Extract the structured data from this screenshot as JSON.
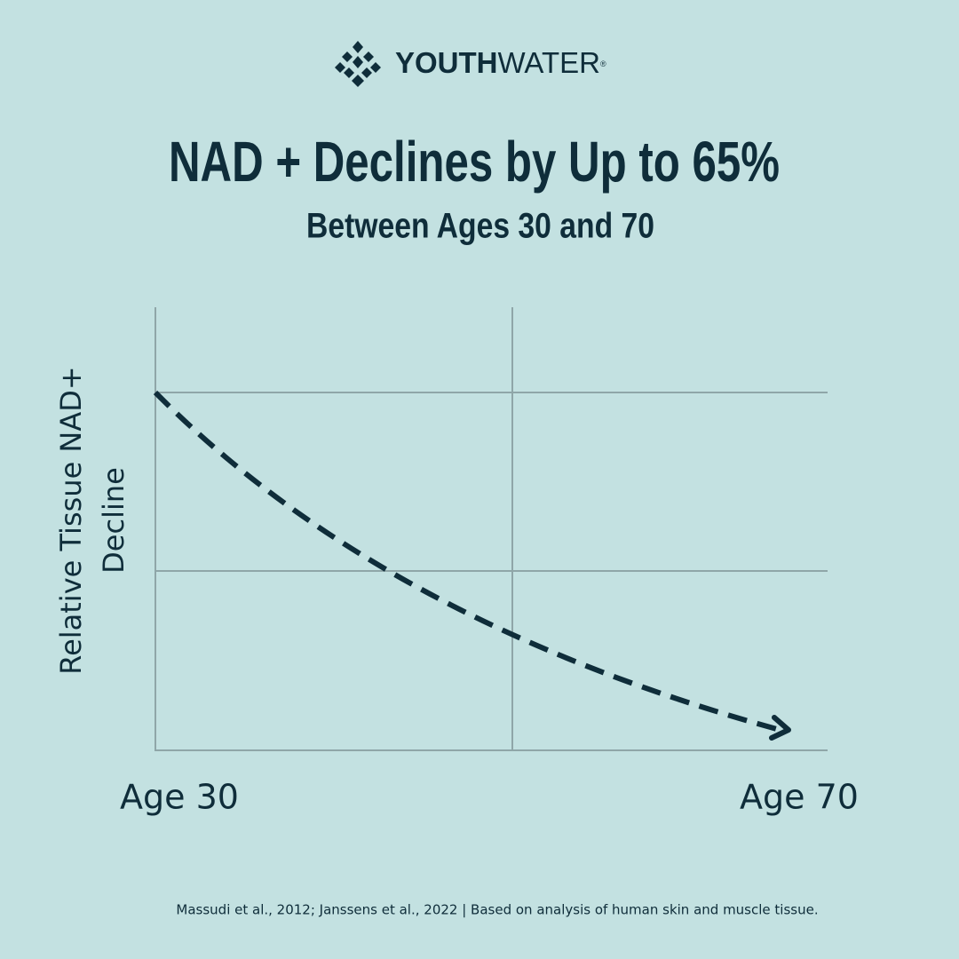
{
  "brand": {
    "bold": "YOUTH",
    "light": "WATER",
    "mark": "®"
  },
  "title": "NAD + Declines by Up to 65%",
  "subtitle": "Between Ages 30 and 70",
  "y_axis_label": [
    "Relative Tissue NAD+",
    "Decline"
  ],
  "x_labels": [
    "Age 30",
    "Age 70"
  ],
  "source": "Massudi et al., 2012; Janssens et al., 2022 | Based on analysis of human skin and muscle tissue."
}
